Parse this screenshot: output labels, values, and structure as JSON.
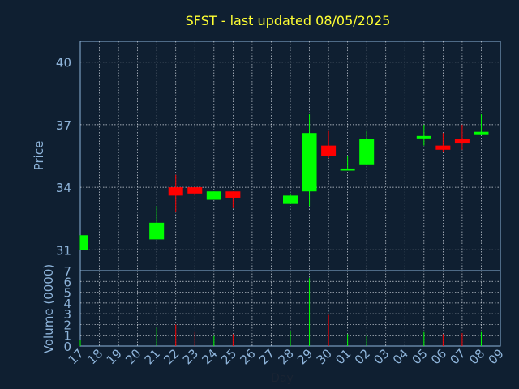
{
  "chart_data": {
    "type": "candlestick",
    "title": "SFST - last updated 08/05/2025",
    "colors": {
      "background": "#0f1f31",
      "plot_border": "#8eb4da",
      "grid": "#cfd6de",
      "up": "#00ff00",
      "down": "#ff0000",
      "title": "#ffff33",
      "axis_text": "#8eb4da"
    },
    "price_panel": {
      "ylabel": "Price",
      "ylim": [
        30,
        41
      ],
      "yticks": [
        31,
        34,
        37,
        40
      ]
    },
    "volume_panel": {
      "ylabel": "Volume (0000)",
      "ylim": [
        0,
        7
      ],
      "yticks": [
        0,
        1,
        2,
        3,
        4,
        5,
        6,
        7
      ]
    },
    "xlabel": "Day",
    "x_ticks": [
      "17",
      "18",
      "19",
      "20",
      "21",
      "22",
      "23",
      "24",
      "25",
      "26",
      "27",
      "28",
      "29",
      "30",
      "01",
      "02",
      "03",
      "04",
      "05",
      "06",
      "07",
      "08",
      "09"
    ],
    "candles": [
      {
        "day": "17",
        "open": 31.0,
        "high": 31.7,
        "low": 31.0,
        "close": 31.7,
        "volume": 0.6
      },
      {
        "day": "21",
        "open": 31.5,
        "high": 33.1,
        "low": 31.5,
        "close": 32.3,
        "volume": 1.7
      },
      {
        "day": "22",
        "open": 34.0,
        "high": 34.6,
        "low": 32.8,
        "close": 33.6,
        "volume": 2.0
      },
      {
        "day": "23",
        "open": 34.0,
        "high": 34.0,
        "low": 33.6,
        "close": 33.7,
        "volume": 1.3
      },
      {
        "day": "24",
        "open": 33.4,
        "high": 33.8,
        "low": 33.4,
        "close": 33.8,
        "volume": 1.0
      },
      {
        "day": "25",
        "open": 33.8,
        "high": 33.8,
        "low": 33.0,
        "close": 33.5,
        "volume": 1.1
      },
      {
        "day": "28",
        "open": 33.2,
        "high": 33.7,
        "low": 33.2,
        "close": 33.6,
        "volume": 1.4
      },
      {
        "day": "29",
        "open": 33.8,
        "high": 37.5,
        "low": 33.1,
        "close": 36.6,
        "volume": 6.3
      },
      {
        "day": "30",
        "open": 36.0,
        "high": 36.7,
        "low": 35.4,
        "close": 35.5,
        "volume": 2.9
      },
      {
        "day": "01",
        "open": 34.8,
        "high": 35.5,
        "low": 34.8,
        "close": 34.9,
        "volume": 1.1
      },
      {
        "day": "02",
        "open": 35.1,
        "high": 36.7,
        "low": 35.1,
        "close": 36.3,
        "volume": 1.0
      },
      {
        "day": "05",
        "open": 36.4,
        "high": 37.0,
        "low": 36.0,
        "close": 36.4,
        "volume": 1.3
      },
      {
        "day": "06",
        "open": 36.0,
        "high": 36.6,
        "low": 35.7,
        "close": 35.8,
        "volume": 1.1
      },
      {
        "day": "07",
        "open": 36.3,
        "high": 37.0,
        "low": 35.8,
        "close": 36.1,
        "volume": 1.2
      },
      {
        "day": "08",
        "open": 36.6,
        "high": 37.5,
        "low": 36.5,
        "close": 36.6,
        "volume": 1.3
      }
    ]
  }
}
